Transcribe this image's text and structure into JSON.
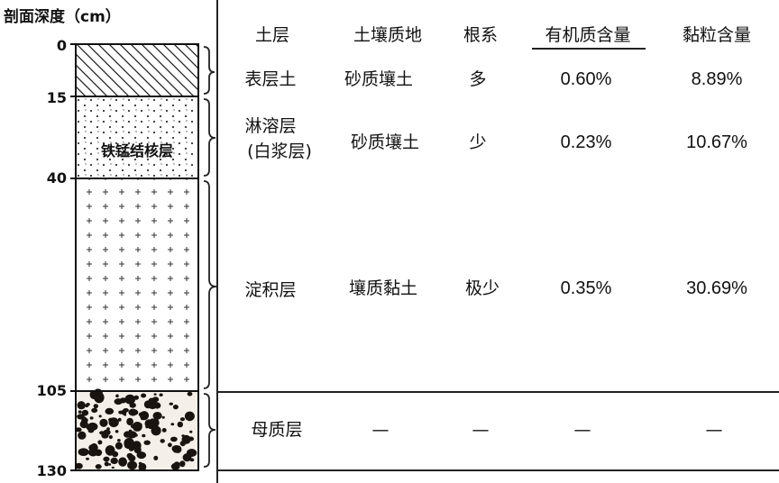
{
  "title": "剖面深度（cm）",
  "depths": [
    "0",
    "15",
    "40",
    "105",
    "130"
  ],
  "nodule_label": "铁锰结核层",
  "headers": [
    "土层",
    "土壤质地",
    "根系",
    "有机质含量",
    "黏粒含量"
  ],
  "rows": [
    {
      "layer": "表层土",
      "layer_sub": "",
      "texture": "砂质壤土",
      "roots": "多",
      "organic": "0.60%",
      "clay": "8.89%"
    },
    {
      "layer": "淋溶层",
      "layer_sub": "(白浆层)",
      "texture": "砂质壤土",
      "roots": "少",
      "organic": "0.23%",
      "clay": "10.67%"
    },
    {
      "layer": "淀积层",
      "layer_sub": "",
      "texture": "壤质黏土",
      "roots": "极少",
      "organic": "0.35%",
      "clay": "30.69%"
    },
    {
      "layer": "母质层",
      "layer_sub": "",
      "texture": "—",
      "roots": "—",
      "organic": "—",
      "clay": "—"
    }
  ],
  "colors": {
    "ink": "#111111",
    "line": "#222222"
  }
}
